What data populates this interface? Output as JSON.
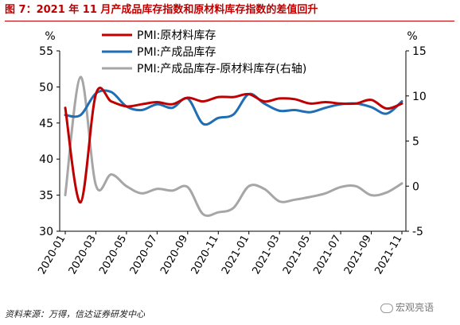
{
  "header": {
    "title": "图 7：2021 年 11 月产成品库存指数和原材料库存指数的差值回升"
  },
  "footer": {
    "source": "资料来源：万得，信达证券研发中心",
    "watermark": "宏观亮语"
  },
  "chart_data": {
    "type": "line",
    "left_unit": "%",
    "right_unit": "%",
    "ylim_left": [
      30,
      55
    ],
    "ylim_right": [
      -5,
      15
    ],
    "yticks_left": [
      30,
      35,
      40,
      45,
      50,
      55
    ],
    "yticks_right": [
      -5,
      0,
      5,
      10,
      15
    ],
    "xticks": [
      "2020-01",
      "2020-03",
      "2020-05",
      "2020-07",
      "2020-09",
      "2020-11",
      "2021-01",
      "2021-03",
      "2021-05",
      "2021-07",
      "2021-09",
      "2021-11"
    ],
    "legend_position": "top-center",
    "grid": false,
    "series": [
      {
        "name": "PMI:原材料库存",
        "axis": "left",
        "color": "#c00000",
        "values": [
          47.1,
          34.0,
          49.0,
          48.0,
          47.3,
          47.6,
          47.9,
          47.6,
          48.5,
          48.0,
          48.6,
          48.6,
          49.0,
          48.0,
          48.4,
          48.3,
          47.7,
          47.9,
          47.7,
          47.7,
          48.2,
          47.0,
          47.7
        ]
      },
      {
        "name": "PMI:产成品库存",
        "axis": "left",
        "color": "#1f6eb4",
        "values": [
          46.1,
          46.1,
          49.1,
          49.3,
          47.3,
          46.8,
          47.6,
          47.1,
          48.4,
          44.9,
          45.7,
          46.2,
          49.0,
          47.7,
          46.7,
          46.8,
          46.5,
          47.1,
          47.6,
          47.7,
          47.2,
          46.3,
          48.0
        ]
      },
      {
        "name": "PMI:产成品库存-原材料库存(右轴)",
        "axis": "right",
        "color": "#a6a6a6",
        "values": [
          -1.0,
          12.1,
          0.1,
          1.3,
          0.0,
          -0.8,
          -0.3,
          -0.5,
          -0.1,
          -3.1,
          -2.9,
          -2.4,
          0.0,
          -0.3,
          -1.7,
          -1.5,
          -1.2,
          -0.8,
          -0.1,
          0.0,
          -1.0,
          -0.7,
          0.3
        ]
      }
    ]
  }
}
